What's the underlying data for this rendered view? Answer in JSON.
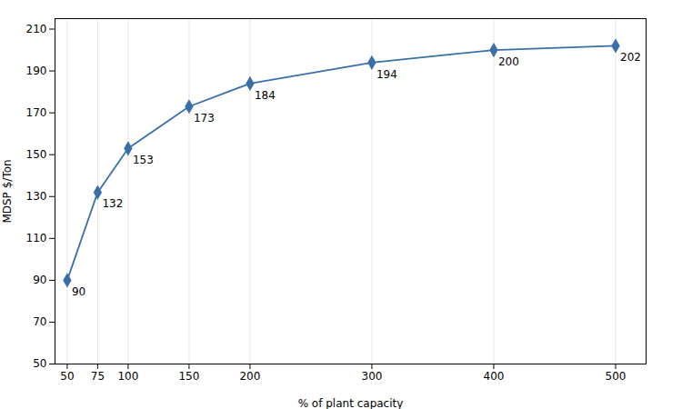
{
  "chart_data": {
    "type": "line",
    "x": [
      50,
      75,
      100,
      150,
      200,
      300,
      400,
      500
    ],
    "values": [
      90,
      132,
      153,
      173,
      184,
      194,
      200,
      202
    ],
    "xlabel": "% of plant capacity",
    "ylabel": "MDSP $/Ton",
    "xlim": [
      40,
      525
    ],
    "ylim": [
      50,
      215
    ],
    "xticks": [
      50,
      75,
      100,
      150,
      200,
      300,
      400,
      500
    ],
    "yticks": [
      50,
      70,
      90,
      110,
      130,
      150,
      170,
      190,
      210
    ],
    "color": "#3a6fa8",
    "marker": "diamond",
    "grid": "x",
    "data_labels": true
  }
}
